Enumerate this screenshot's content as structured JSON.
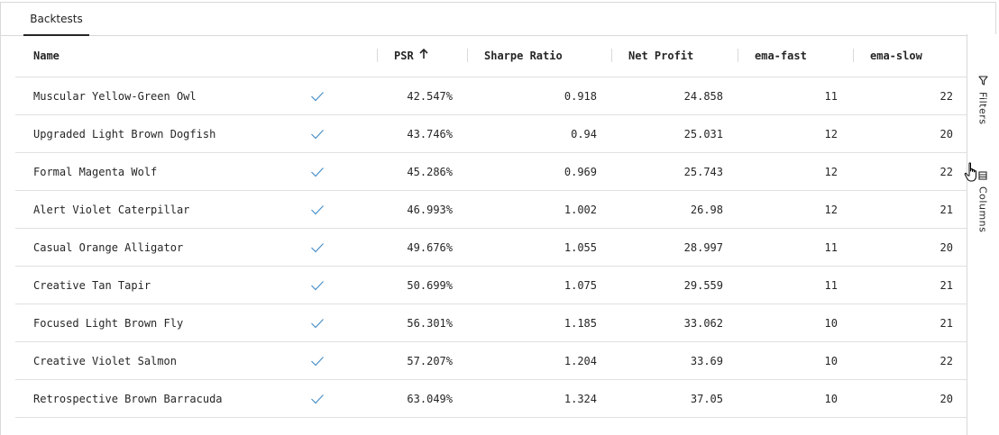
{
  "tabs": [
    {
      "label": "Backtests",
      "active": true
    }
  ],
  "columns": {
    "name": "Name",
    "psr": "PSR",
    "sharpe": "Sharpe Ratio",
    "net_profit": "Net Profit",
    "ema_fast": "ema-fast",
    "ema_slow": "ema-slow"
  },
  "sort": {
    "column": "PSR",
    "direction": "ascending"
  },
  "rows": [
    {
      "name": "Muscular Yellow-Green Owl",
      "psr": "42.547%",
      "sharpe": "0.918",
      "net": "24.858",
      "fast": "11",
      "slow": "22"
    },
    {
      "name": "Upgraded Light Brown Dogfish",
      "psr": "43.746%",
      "sharpe": "0.94",
      "net": "25.031",
      "fast": "12",
      "slow": "20"
    },
    {
      "name": "Formal Magenta Wolf",
      "psr": "45.286%",
      "sharpe": "0.969",
      "net": "25.743",
      "fast": "12",
      "slow": "22"
    },
    {
      "name": "Alert Violet Caterpillar",
      "psr": "46.993%",
      "sharpe": "1.002",
      "net": "26.98",
      "fast": "12",
      "slow": "21"
    },
    {
      "name": "Casual Orange Alligator",
      "psr": "49.676%",
      "sharpe": "1.055",
      "net": "28.997",
      "fast": "11",
      "slow": "20"
    },
    {
      "name": "Creative Tan Tapir",
      "psr": "50.699%",
      "sharpe": "1.075",
      "net": "29.559",
      "fast": "11",
      "slow": "21"
    },
    {
      "name": "Focused Light Brown Fly",
      "psr": "56.301%",
      "sharpe": "1.185",
      "net": "33.062",
      "fast": "10",
      "slow": "21"
    },
    {
      "name": "Creative Violet Salmon",
      "psr": "57.207%",
      "sharpe": "1.204",
      "net": "33.69",
      "fast": "10",
      "slow": "22"
    },
    {
      "name": "Retrospective Brown Barracuda",
      "psr": "63.049%",
      "sharpe": "1.324",
      "net": "37.05",
      "fast": "10",
      "slow": "20"
    }
  ],
  "sidebar": {
    "filters_label": "Filters",
    "columns_label": "Columns"
  },
  "colors": {
    "check": "#4a90c8",
    "border": "#d9d9d9"
  },
  "icons": {
    "check": "checkmark-icon",
    "sort": "arrow-up-icon",
    "filter": "funnel-icon",
    "columns": "columns-icon",
    "cursor": "hand-pointer-cursor"
  }
}
